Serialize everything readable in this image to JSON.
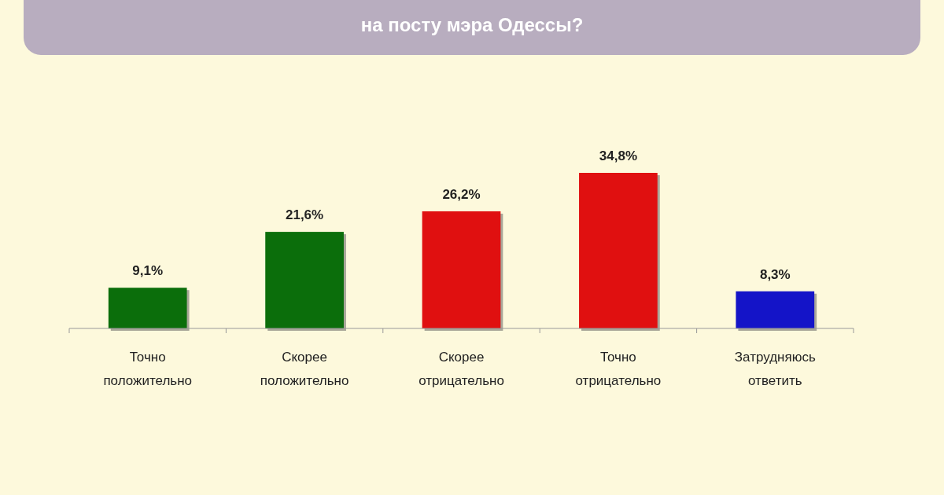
{
  "chart_data": {
    "type": "bar",
    "title": "на посту мэра Одессы?",
    "categories": [
      "Точно положительно",
      "Скорее положительно",
      "Скорее отрицательно",
      "Точно отрицательно",
      "Затрудняюсь ответить"
    ],
    "values": [
      9.1,
      21.6,
      26.2,
      34.8,
      8.3
    ],
    "colors": [
      "#0b6e0b",
      "#0b6e0b",
      "#e01010",
      "#e01010",
      "#1414c8"
    ],
    "value_labels": [
      "9,1%",
      "21,6%",
      "26,2%",
      "34,8%",
      "8,3%"
    ],
    "grid": false
  }
}
